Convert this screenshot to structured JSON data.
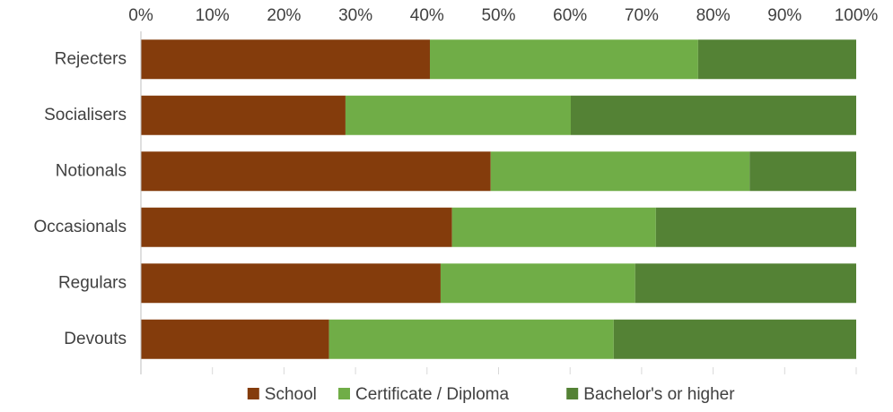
{
  "chart_data": {
    "type": "stacked_bar_horizontal",
    "categories": [
      "Rejecters",
      "Socialisers",
      "Notionals",
      "Occasionals",
      "Regulars",
      "Devouts"
    ],
    "series": [
      {
        "name": "School",
        "color": "#843c0c",
        "values": [
          40.4,
          28.6,
          48.9,
          43.5,
          41.9,
          26.3
        ]
      },
      {
        "name": "Certificate / Diploma",
        "color": "#70ad47",
        "values": [
          37.5,
          31.5,
          36.2,
          28.5,
          27.2,
          39.8
        ]
      },
      {
        "name": "Bachelor's or higher",
        "color": "#548235",
        "values": [
          22.1,
          39.9,
          14.9,
          28.0,
          30.9,
          33.9
        ]
      }
    ],
    "xlim": [
      0,
      100
    ],
    "xticks": [
      {
        "value": 0,
        "label": "0%"
      },
      {
        "value": 10,
        "label": "10%"
      },
      {
        "value": 20,
        "label": "20%"
      },
      {
        "value": 30,
        "label": "30%"
      },
      {
        "value": 40,
        "label": "40%"
      },
      {
        "value": 50,
        "label": "50%"
      },
      {
        "value": 60,
        "label": "60%"
      },
      {
        "value": 70,
        "label": "70%"
      },
      {
        "value": 80,
        "label": "80%"
      },
      {
        "value": 90,
        "label": "90%"
      },
      {
        "value": 100,
        "label": "100%"
      }
    ],
    "legend": "bottom"
  }
}
